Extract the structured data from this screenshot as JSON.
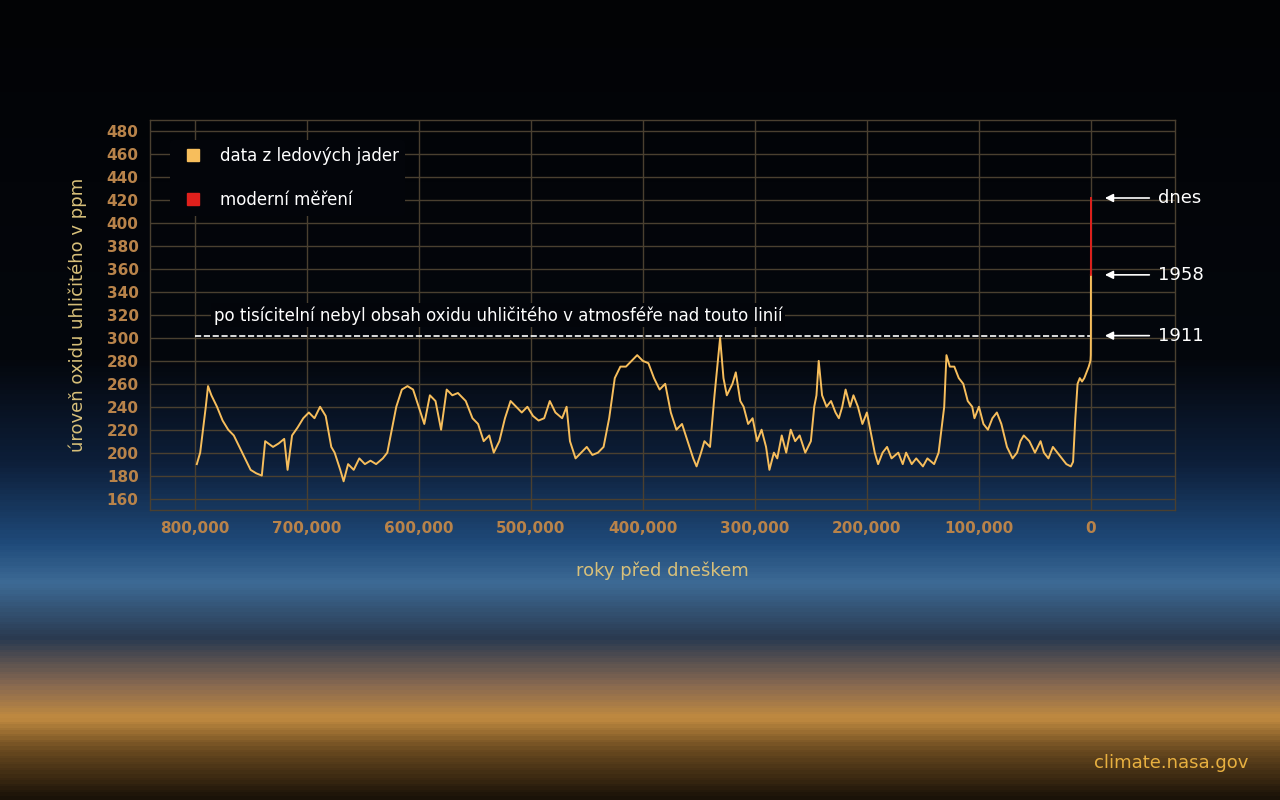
{
  "chart_data": {
    "type": "line",
    "x_label": "roky před dneškem",
    "y_label": "úroveň oxidu uhličitého v ppm",
    "xlim": [
      840000,
      -75000
    ],
    "ylim": [
      150,
      490
    ],
    "xticks": [
      {
        "value": 800000,
        "label": "800,000"
      },
      {
        "value": 700000,
        "label": "700,000"
      },
      {
        "value": 600000,
        "label": "600,000"
      },
      {
        "value": 500000,
        "label": "500,000"
      },
      {
        "value": 400000,
        "label": "400,000"
      },
      {
        "value": 300000,
        "label": "300,000"
      },
      {
        "value": 200000,
        "label": "200,000"
      },
      {
        "value": 100000,
        "label": "100,000"
      },
      0
    ],
    "yticks": [
      160,
      180,
      200,
      220,
      240,
      260,
      280,
      300,
      320,
      340,
      360,
      380,
      400,
      420,
      440,
      460,
      480
    ],
    "grid": true,
    "legend": "upper left",
    "series": [
      {
        "name": "data z ledových jader",
        "color": "#f7be5c",
        "marker": "s",
        "x": [
          798000,
          795000,
          790000,
          788000,
          785000,
          780000,
          775000,
          770000,
          765000,
          760000,
          755000,
          750000,
          745000,
          740000,
          737000,
          730000,
          725000,
          720000,
          717000,
          713000,
          708000,
          703000,
          698000,
          693000,
          688000,
          683000,
          678000,
          675000,
          670000,
          667000,
          663000,
          658000,
          653000,
          648000,
          643000,
          638000,
          632000,
          628000,
          620000,
          615000,
          610000,
          605000,
          600000,
          595000,
          590000,
          585000,
          580000,
          575000,
          570000,
          565000,
          558000,
          552000,
          547000,
          542000,
          537000,
          533000,
          528000,
          523000,
          518000,
          513000,
          508000,
          503000,
          498000,
          493000,
          488000,
          483000,
          478000,
          472000,
          468000,
          465000,
          460000,
          455000,
          450000,
          445000,
          440000,
          435000,
          430000,
          425000,
          420000,
          415000,
          410000,
          405000,
          400000,
          395000,
          390000,
          385000,
          380000,
          375000,
          370000,
          365000,
          360000,
          355000,
          352000,
          348000,
          345000,
          340000,
          336000,
          333000,
          331000,
          328000,
          325000,
          320000,
          317000,
          313000,
          310000,
          306000,
          302000,
          298000,
          294000,
          290000,
          287000,
          283000,
          280000,
          276000,
          272000,
          268000,
          264000,
          260000,
          255000,
          250000,
          247000,
          245000,
          243000,
          240000,
          236000,
          232000,
          228000,
          225000,
          222000,
          219000,
          215000,
          212000,
          208000,
          204000,
          200000,
          196000,
          193000,
          190000,
          186000,
          182000,
          178000,
          172000,
          168000,
          165000,
          160000,
          156000,
          150000,
          146000,
          140000,
          136000,
          131000,
          129000,
          126000,
          122000,
          118000,
          114000,
          110000,
          106000,
          104000,
          100000,
          96000,
          92000,
          88000,
          84000,
          80000,
          75000,
          70000,
          66000,
          63000,
          60000,
          55000,
          50000,
          45000,
          42000,
          38000,
          34000,
          30000,
          26000,
          22000,
          18000,
          16000,
          14000,
          12000,
          10000,
          8000,
          6000,
          4000,
          2000,
          500,
          200,
          113,
          66
        ],
        "values": [
          190,
          200,
          240,
          258,
          250,
          240,
          228,
          220,
          215,
          205,
          195,
          185,
          182,
          180,
          210,
          205,
          208,
          212,
          185,
          215,
          222,
          230,
          235,
          230,
          240,
          232,
          205,
          200,
          185,
          175,
          190,
          185,
          195,
          190,
          193,
          190,
          195,
          200,
          240,
          255,
          258,
          255,
          240,
          225,
          250,
          245,
          220,
          255,
          250,
          252,
          245,
          230,
          225,
          210,
          215,
          200,
          210,
          230,
          245,
          240,
          235,
          240,
          232,
          228,
          230,
          245,
          235,
          230,
          240,
          210,
          195,
          200,
          205,
          198,
          200,
          205,
          230,
          265,
          275,
          275,
          280,
          285,
          280,
          278,
          265,
          255,
          260,
          235,
          220,
          225,
          210,
          195,
          188,
          200,
          210,
          205,
          250,
          280,
          300,
          265,
          250,
          260,
          270,
          245,
          240,
          225,
          230,
          210,
          220,
          205,
          185,
          200,
          195,
          215,
          200,
          220,
          210,
          215,
          200,
          210,
          240,
          250,
          280,
          250,
          240,
          245,
          235,
          230,
          240,
          255,
          240,
          250,
          240,
          225,
          235,
          215,
          200,
          190,
          200,
          205,
          195,
          200,
          190,
          200,
          190,
          195,
          188,
          195,
          190,
          200,
          240,
          285,
          275,
          275,
          265,
          260,
          245,
          240,
          230,
          240,
          225,
          220,
          230,
          235,
          225,
          205,
          195,
          200,
          210,
          215,
          210,
          200,
          210,
          200,
          195,
          205,
          200,
          195,
          190,
          188,
          192,
          230,
          260,
          265,
          262,
          265,
          270,
          275,
          280,
          285,
          302,
          355
        ]
      },
      {
        "name": "moderní měření",
        "color": "#e0201c",
        "marker": "s",
        "x": [
          66,
          33,
          0
        ],
        "values": [
          355,
          385,
          422
        ]
      }
    ],
    "reference_line": {
      "y": 302,
      "x": [
        800000,
        0
      ],
      "line_style": "dashed",
      "color": "#ffffff",
      "text": "po tisícitelní nebyl obsah oxidu uhličitého v atmosféře nad touto linií"
    },
    "annotations": [
      {
        "text": "dnes",
        "x": 0,
        "y": 422
      },
      {
        "text": "1958",
        "x": 0,
        "y": 355
      },
      {
        "text": "1911",
        "x": 0,
        "y": 302
      }
    ],
    "source": "climate.nasa.gov"
  }
}
